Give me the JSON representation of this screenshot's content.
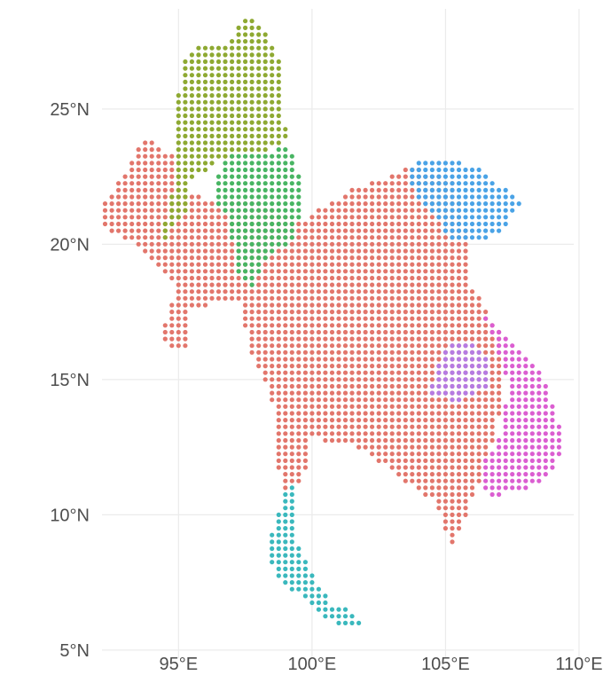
{
  "chart_data": {
    "type": "map",
    "title": "",
    "xlabel": "",
    "ylabel": "",
    "projection": "equirectangular",
    "xlim": [
      91.8,
      110.3
    ],
    "ylim": [
      4.7,
      28.7
    ],
    "grid": true,
    "legend": "none",
    "x_ticks": [
      {
        "value": 95,
        "label": "95°E"
      },
      {
        "value": 100,
        "label": "100°E"
      },
      {
        "value": 105,
        "label": "105°E"
      },
      {
        "value": 110,
        "label": "110°E"
      }
    ],
    "y_ticks": [
      {
        "value": 5,
        "label": "5°N"
      },
      {
        "value": 10,
        "label": "10°N"
      },
      {
        "value": 15,
        "label": "15°N"
      },
      {
        "value": 20,
        "label": "20°N"
      },
      {
        "value": 25,
        "label": "25°N"
      }
    ],
    "dot_spacing_deg": 0.25,
    "groups": [
      {
        "key": "red",
        "color": "#e2766c",
        "description_polygon_lonlat": [
          [
            92.2,
            21.5
          ],
          [
            93.0,
            22.6
          ],
          [
            93.7,
            24.0
          ],
          [
            94.8,
            23.3
          ],
          [
            95.3,
            21.8
          ],
          [
            97.8,
            21.6
          ],
          [
            99.5,
            20.8
          ],
          [
            101.5,
            22.0
          ],
          [
            103.8,
            22.9
          ],
          [
            105.3,
            22.3
          ],
          [
            105.8,
            20.5
          ],
          [
            106.0,
            18.5
          ],
          [
            107.2,
            16.5
          ],
          [
            107.0,
            13.5
          ],
          [
            106.2,
            11.0
          ],
          [
            105.6,
            9.6
          ],
          [
            105.2,
            8.7
          ],
          [
            104.6,
            10.5
          ],
          [
            103.3,
            11.3
          ],
          [
            102.5,
            12.0
          ],
          [
            101.5,
            12.6
          ],
          [
            100.0,
            12.8
          ],
          [
            99.7,
            11.3
          ],
          [
            98.8,
            10.8
          ],
          [
            98.6,
            14.0
          ],
          [
            97.7,
            16.0
          ],
          [
            97.3,
            18.0
          ],
          [
            95.5,
            17.6
          ],
          [
            95.5,
            16.2
          ],
          [
            94.6,
            16.0
          ],
          [
            94.4,
            16.8
          ],
          [
            95.0,
            18.5
          ],
          [
            94.2,
            19.3
          ],
          [
            93.5,
            20.0
          ],
          [
            92.9,
            20.2
          ],
          [
            92.2,
            20.7
          ]
        ]
      },
      {
        "key": "olive",
        "color": "#8ea932",
        "description_polygon_lonlat": [
          [
            94.3,
            20.0
          ],
          [
            94.8,
            22.0
          ],
          [
            94.8,
            24.2
          ],
          [
            95.2,
            26.8
          ],
          [
            96.0,
            27.5
          ],
          [
            96.8,
            27.5
          ],
          [
            97.7,
            28.5
          ],
          [
            98.5,
            27.5
          ],
          [
            99.0,
            26.2
          ],
          [
            98.8,
            24.8
          ],
          [
            99.2,
            24.0
          ],
          [
            98.4,
            23.5
          ],
          [
            96.8,
            23.2
          ],
          [
            95.5,
            22.4
          ],
          [
            95.2,
            21.0
          ]
        ]
      },
      {
        "key": "green",
        "color": "#48b563",
        "description_polygon_lonlat": [
          [
            96.3,
            21.8
          ],
          [
            96.6,
            23.2
          ],
          [
            98.6,
            23.5
          ],
          [
            99.2,
            23.6
          ],
          [
            99.6,
            22.4
          ],
          [
            99.6,
            21.2
          ],
          [
            99.3,
            20.2
          ],
          [
            98.2,
            19.3
          ],
          [
            97.8,
            18.2
          ],
          [
            97.2,
            19.0
          ],
          [
            96.9,
            20.8
          ]
        ]
      },
      {
        "key": "blue",
        "color": "#4aa3e6",
        "description_polygon_lonlat": [
          [
            103.6,
            22.8
          ],
          [
            104.2,
            23.1
          ],
          [
            105.4,
            23.1
          ],
          [
            106.3,
            22.8
          ],
          [
            107.0,
            22.2
          ],
          [
            108.0,
            21.6
          ],
          [
            106.9,
            20.3
          ],
          [
            106.1,
            20.1
          ],
          [
            105.2,
            20.1
          ],
          [
            104.8,
            20.8
          ],
          [
            104.3,
            21.4
          ],
          [
            103.8,
            21.8
          ]
        ]
      },
      {
        "key": "magenta",
        "color": "#db5ed1",
        "description_polygon_lonlat": [
          [
            105.9,
            18.1
          ],
          [
            107.1,
            16.8
          ],
          [
            108.5,
            15.5
          ],
          [
            109.4,
            13.0
          ],
          [
            109.2,
            11.8
          ],
          [
            108.2,
            11.0
          ],
          [
            107.0,
            10.7
          ],
          [
            106.4,
            10.8
          ],
          [
            106.5,
            12.0
          ],
          [
            107.2,
            13.2
          ],
          [
            107.3,
            15.0
          ],
          [
            106.9,
            16.3
          ],
          [
            106.4,
            17.3
          ]
        ]
      },
      {
        "key": "purple",
        "color": "#b57be3",
        "description_polygon_lonlat": [
          [
            104.3,
            14.5
          ],
          [
            104.9,
            15.9
          ],
          [
            105.3,
            16.3
          ],
          [
            105.8,
            16.4
          ],
          [
            106.6,
            15.9
          ],
          [
            106.6,
            14.7
          ],
          [
            105.4,
            14.2
          ]
        ]
      },
      {
        "key": "cyan",
        "color": "#3ab8bd",
        "description_polygon_lonlat": [
          [
            99.2,
            11.2
          ],
          [
            99.5,
            10.4
          ],
          [
            99.3,
            9.4
          ],
          [
            99.8,
            8.4
          ],
          [
            100.3,
            7.3
          ],
          [
            100.8,
            6.6
          ],
          [
            101.5,
            6.5
          ],
          [
            102.0,
            6.0
          ],
          [
            101.8,
            5.9
          ],
          [
            100.9,
            6.0
          ],
          [
            100.2,
            6.3
          ],
          [
            99.6,
            7.0
          ],
          [
            98.8,
            7.5
          ],
          [
            98.3,
            8.6
          ],
          [
            98.5,
            9.3
          ],
          [
            98.9,
            10.6
          ]
        ]
      }
    ]
  }
}
